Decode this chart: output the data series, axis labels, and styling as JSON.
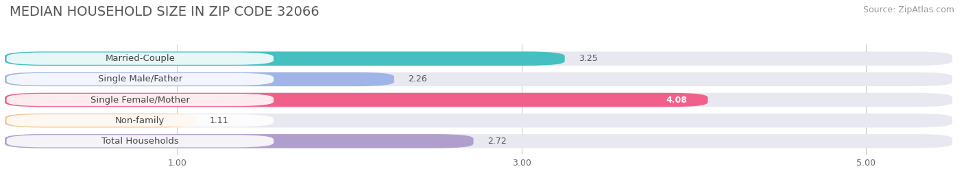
{
  "title": "MEDIAN HOUSEHOLD SIZE IN ZIP CODE 32066",
  "source": "Source: ZipAtlas.com",
  "categories": [
    "Married-Couple",
    "Single Male/Father",
    "Single Female/Mother",
    "Non-family",
    "Total Households"
  ],
  "values": [
    3.25,
    2.26,
    4.08,
    1.11,
    2.72
  ],
  "bar_colors": [
    "#45bfbf",
    "#a0b4e8",
    "#f0608a",
    "#f5c896",
    "#b09fcc"
  ],
  "xmin": 0.0,
  "xmax": 5.5,
  "xticks": [
    1.0,
    3.0,
    5.0
  ],
  "background_color": "#ffffff",
  "bar_bg_color": "#e8e8f0",
  "title_fontsize": 14,
  "source_fontsize": 9,
  "label_fontsize": 9.5,
  "value_fontsize": 9
}
